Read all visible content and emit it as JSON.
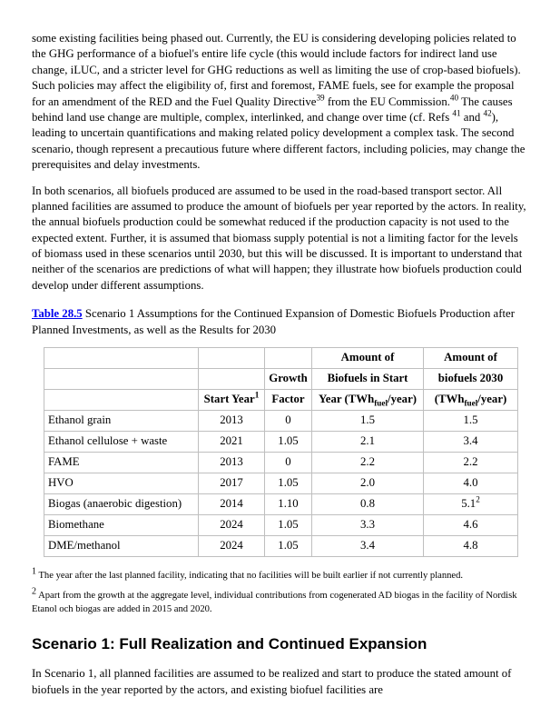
{
  "colors": {
    "link_blue": "#0000ee",
    "table_border": "#bfbfbf",
    "text": "#000000",
    "page_background": "#ffffff"
  },
  "paragraph1": [
    {
      "t": "some existing facilities being phased out. Currently, the EU is considering developing policies related to the GHG performance of a biofuel's entire life cycle (this would include factors for indirect land use change, iLUC, and a stricter level for GHG reductions as well as limiting the use of crop-based biofuels). Such policies may affect the eligibility of, first and foremost, FAME fuels, see for example the proposal for an amendment of the RED and the Fuel Quality Directive"
    },
    {
      "sup": "39"
    },
    {
      "t": " from the EU Commission."
    },
    {
      "sup": "40"
    },
    {
      "t": " The causes behind land use change are multiple, complex, interlinked, and change over time (cf. Refs "
    },
    {
      "sup": "41"
    },
    {
      "t": " and "
    },
    {
      "sup": "42"
    },
    {
      "t": "), leading to uncertain quantifications and making related policy development a complex task. The second scenario, though represent a precautious future where different factors, including policies, may change the prerequisites and delay investments."
    }
  ],
  "paragraph2": "In both scenarios, all biofuels produced are assumed to be used in the road-based transport sector. All planned facilities are assumed to produce the amount of biofuels per year reported by the actors. In reality, the annual biofuels production could be somewhat reduced if the production capacity is not used to the expected extent. Further, it is assumed that biomass supply potential is not a limiting factor for the levels of biomass used in these scenarios until 2030, but this will be discussed. It is important to understand that neither of the scenarios are predictions of what will happen; they illustrate how biofuels production could develop under different assumptions.",
  "caption": {
    "link": "Table 28.5",
    "text_rest": " Scenario 1 Assumptions for the Continued Expansion of Domestic Biofuels Production after Planned Investments, as well as the Results for 2030"
  },
  "table": {
    "header_rows": [
      [
        "",
        "",
        "",
        "Amount of",
        "Amount of"
      ],
      [
        "",
        "",
        "Growth",
        "Biofuels in Start",
        "biofuels 2030"
      ],
      [
        "",
        [
          {
            "t": "Start Year"
          },
          {
            "sup": "1"
          }
        ],
        "Factor",
        [
          {
            "t": "Year (TWh"
          },
          {
            "sub": "fuel"
          },
          {
            "t": "/year)"
          }
        ],
        [
          {
            "t": "(TWh"
          },
          {
            "sub": "fuel"
          },
          {
            "t": "/year)"
          }
        ]
      ]
    ],
    "rows": [
      [
        "Ethanol grain",
        "2013",
        "0",
        "1.5",
        "1.5"
      ],
      [
        "Ethanol cellulose + waste",
        "2021",
        "1.05",
        "2.1",
        "3.4"
      ],
      [
        "FAME",
        "2013",
        "0",
        "2.2",
        "2.2"
      ],
      [
        "HVO",
        "2017",
        "1.05",
        "2.0",
        "4.0"
      ],
      [
        "Biogas (anaerobic digestion)",
        "2014",
        "1.10",
        "0.8",
        [
          {
            "t": "5.1"
          },
          {
            "sup": "2"
          }
        ]
      ],
      [
        "Biomethane",
        "2024",
        "1.05",
        "3.3",
        "4.6"
      ],
      [
        "DME/methanol",
        "2024",
        "1.05",
        "3.4",
        "4.8"
      ]
    ]
  },
  "footnotes": [
    {
      "marker": "1",
      "text": " The year after the last planned facility, indicating that no facilities will be built earlier if not currently planned."
    },
    {
      "marker": "2",
      "text": " Apart from the growth at the aggregate level, individual contributions from cogenerated AD biogas in the facility of Nordisk Etanol och biogas are added in 2015 and 2020."
    }
  ],
  "heading": "Scenario 1: Full Realization and Continued Expansion",
  "paragraph3": "In Scenario 1, all planned facilities are assumed to be realized and start to produce the stated amount of biofuels in the year reported by the actors, and existing biofuel facilities are"
}
